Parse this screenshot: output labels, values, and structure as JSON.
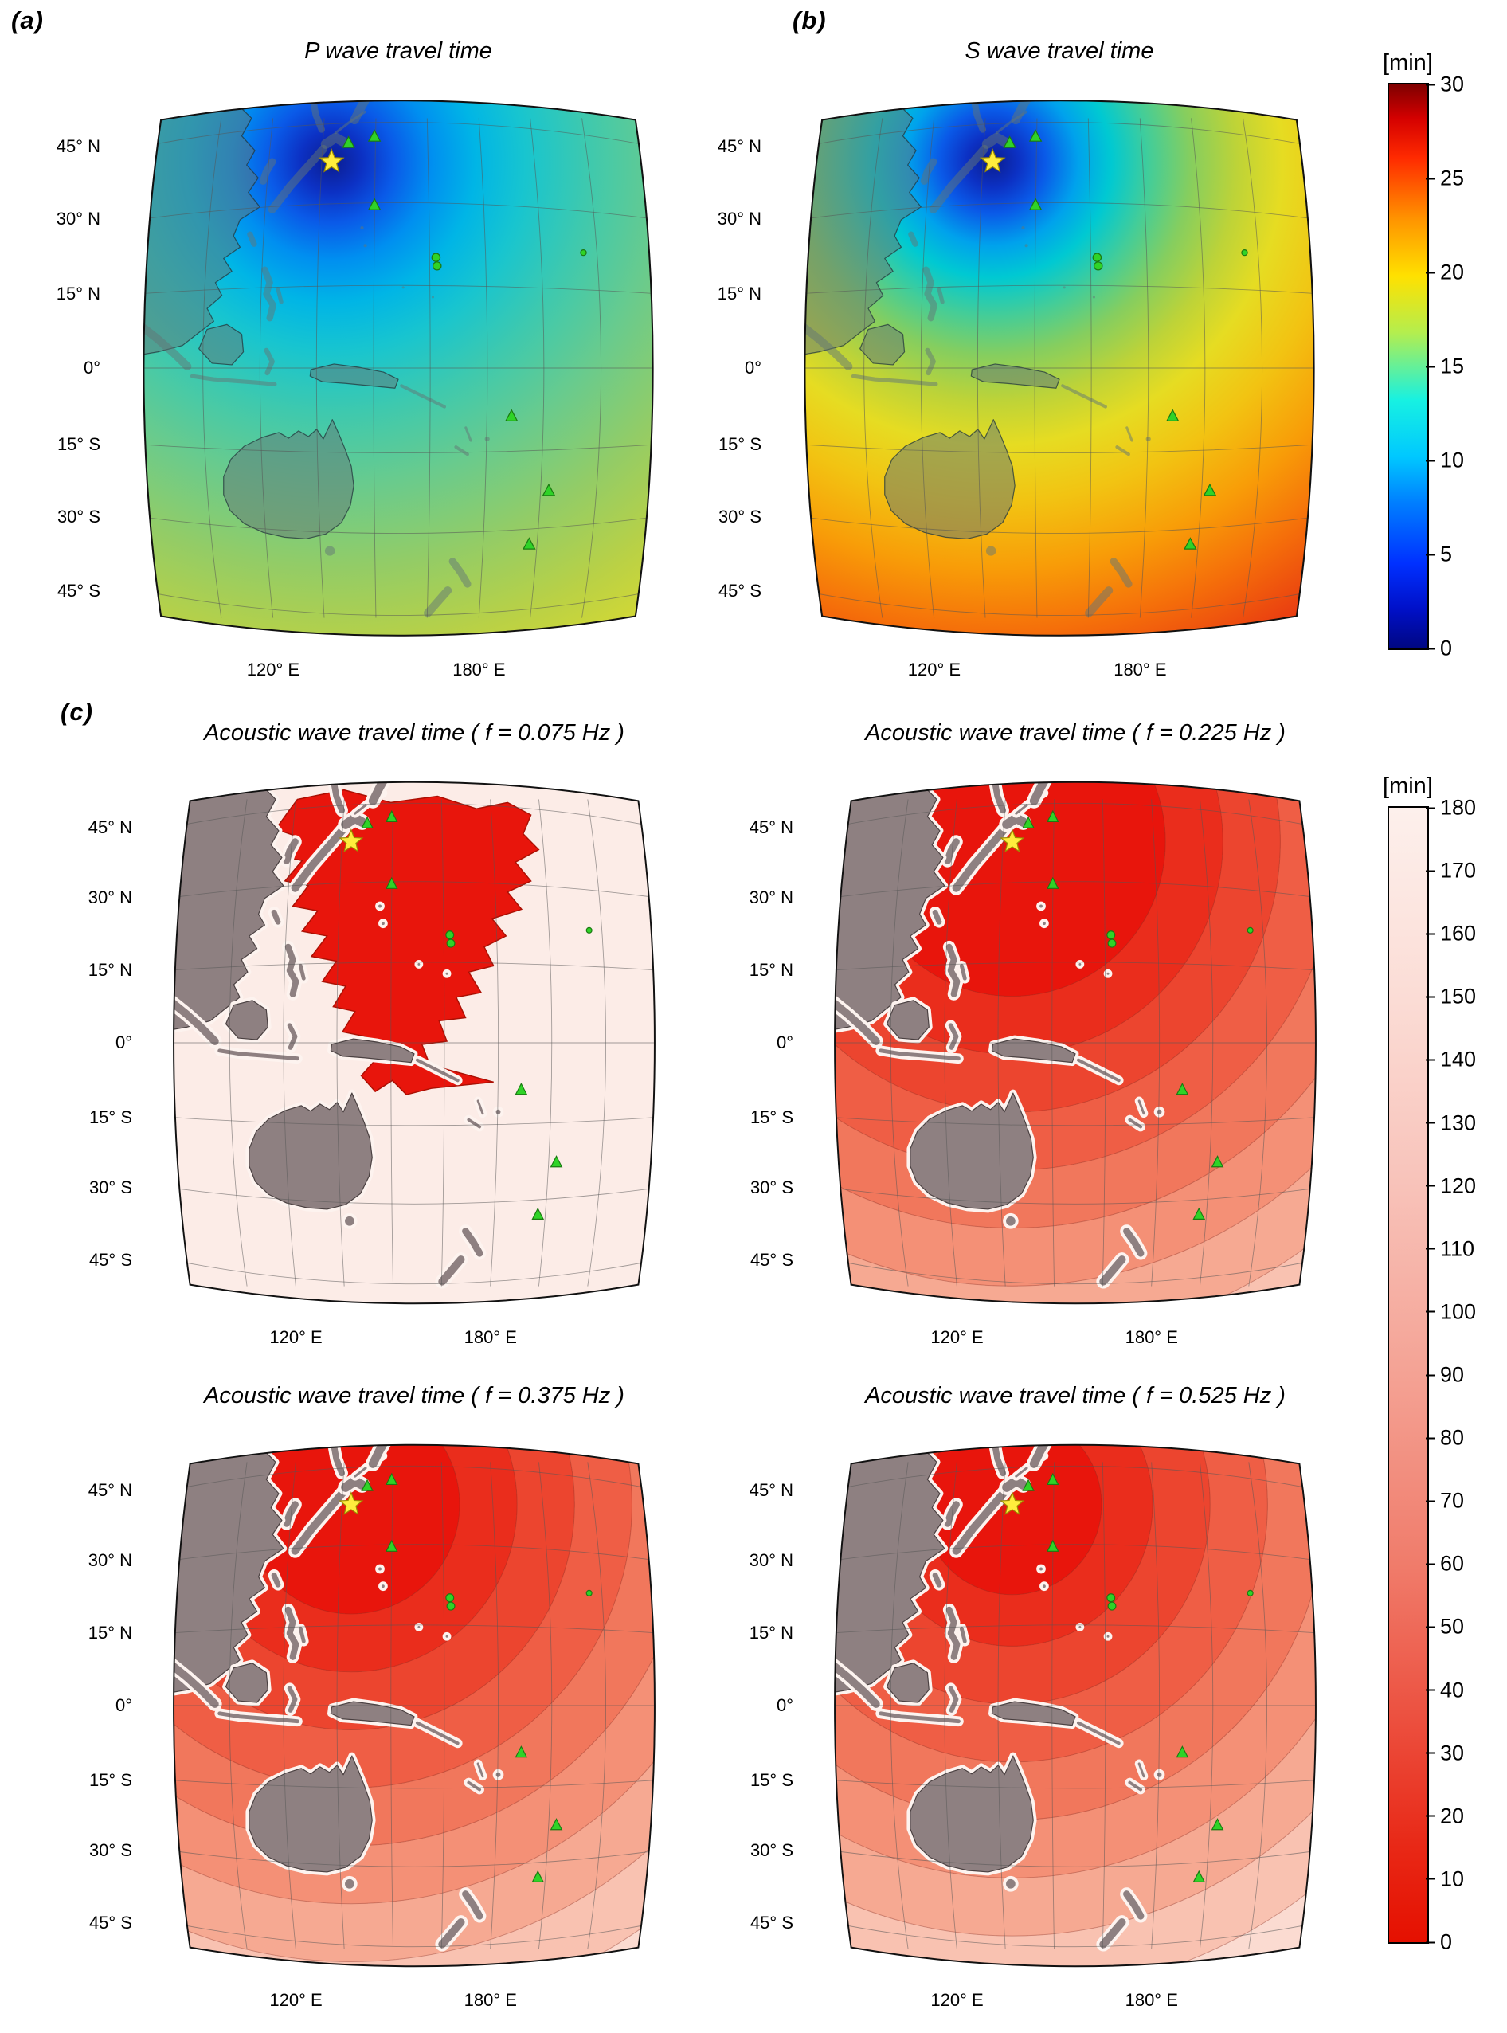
{
  "figure": {
    "panel_labels": {
      "a": "(a)",
      "b": "(b)",
      "c": "(c)"
    },
    "colorbar_top": {
      "unit_label": "[min]",
      "min": 0,
      "max": 30,
      "colormap": "jet",
      "ticks": [
        "30",
        "25",
        "20",
        "15",
        "10",
        "5",
        "0"
      ]
    },
    "colorbar_bottom": {
      "unit_label": "[min]",
      "min": 0,
      "max": 180,
      "colormap": "red-to-white",
      "ticks": [
        "180",
        "170",
        "160",
        "150",
        "140",
        "130",
        "120",
        "110",
        "100",
        "90",
        "80",
        "70",
        "60",
        "50",
        "40",
        "30",
        "20",
        "10",
        "0"
      ]
    }
  },
  "axes": {
    "lat_ticks": [
      "45° N",
      "30° N",
      "15° N",
      "0°",
      "15° S",
      "30° S",
      "45° S"
    ],
    "lon_ticks": [
      "120° E",
      "180° E"
    ]
  },
  "panels": {
    "a": {
      "title": "P wave travel time"
    },
    "b": {
      "title": "S wave travel time"
    },
    "c1": {
      "title": "Acoustic wave travel time ( f = 0.075 Hz )"
    },
    "c2": {
      "title": "Acoustic wave travel time ( f = 0.225 Hz )"
    },
    "c3": {
      "title": "Acoustic wave travel time ( f = 0.375 Hz )"
    },
    "c4": {
      "title": "Acoustic wave travel time ( f = 0.525 Hz )"
    }
  },
  "map_markers": {
    "epicenter": {
      "shape": "star",
      "color": "#ffec3d",
      "edge": "#9c8b00",
      "x": 0.371,
      "y": 0.112,
      "approx_lon_lat": [
        142,
        38
      ]
    },
    "station_color": "#2fd327",
    "station_edge": "#1b7a12",
    "stations": [
      {
        "shape": "triangle",
        "x": 0.404,
        "y": 0.077,
        "approx_lon_lat": [
          144,
          43
        ]
      },
      {
        "shape": "triangle",
        "x": 0.454,
        "y": 0.065,
        "approx_lon_lat": [
          150,
          44
        ]
      },
      {
        "shape": "triangle",
        "x": 0.454,
        "y": 0.194,
        "approx_lon_lat": [
          150,
          31
        ]
      },
      {
        "shape": "circle",
        "x": 0.573,
        "y": 0.292,
        "approx_lon_lat": [
          167,
          21
        ]
      },
      {
        "shape": "circle",
        "x": 0.575,
        "y": 0.308,
        "approx_lon_lat": [
          167,
          19
        ]
      },
      {
        "shape": "circle",
        "x": 0.858,
        "y": 0.283,
        "small": true,
        "approx_lon_lat": [
          206,
          22
        ]
      },
      {
        "shape": "triangle",
        "x": 0.719,
        "y": 0.591,
        "approx_lon_lat": [
          187,
          -9
        ]
      },
      {
        "shape": "triangle",
        "x": 0.791,
        "y": 0.731,
        "approx_lon_lat": [
          197,
          -23
        ]
      },
      {
        "shape": "triangle",
        "x": 0.753,
        "y": 0.832,
        "approx_lon_lat": [
          191,
          -33
        ]
      }
    ]
  },
  "chart_data": [
    {
      "id": "a",
      "type": "heatmap",
      "title": "P wave travel time",
      "units": "min",
      "colorbar_range": [
        0,
        30
      ],
      "colormap": "jet",
      "region": "western/central Pacific, approx 90E-225E, 50S-50N",
      "lat_ticks": [
        "45° N",
        "30° N",
        "15° N",
        "0°",
        "15° S",
        "30° S",
        "45° S"
      ],
      "lon_ticks": [
        "120° E",
        "180° E"
      ],
      "pattern": "travel time increases radially from the epicenter offshore NE Japan (~0 min, dark blue) to ~13-15 min (yellow-green) at the far SE corner",
      "value_range_shown": [
        0,
        15
      ],
      "land_style": "overlay",
      "render": "gradient",
      "gradient_radius": 760,
      "gradient_stops": [
        [
          0,
          "#0b1c8f"
        ],
        [
          0.05,
          "#0c31c4"
        ],
        [
          0.1,
          "#0a5ae8"
        ],
        [
          0.16,
          "#008ff0"
        ],
        [
          0.23,
          "#00b5e6"
        ],
        [
          0.31,
          "#18c5cf"
        ],
        [
          0.41,
          "#3ec9ae"
        ],
        [
          0.53,
          "#69cb8d"
        ],
        [
          0.66,
          "#92cc67"
        ],
        [
          0.8,
          "#bad145"
        ],
        [
          0.92,
          "#d9da30"
        ],
        [
          1,
          "#e6df28"
        ]
      ]
    },
    {
      "id": "b",
      "type": "heatmap",
      "title": "S wave travel time",
      "units": "min",
      "colorbar_range": [
        0,
        30
      ],
      "colormap": "jet",
      "region": "western/central Pacific, approx 90E-225E, 50S-50N",
      "lat_ticks": [
        "45° N",
        "30° N",
        "15° N",
        "0°",
        "15° S",
        "30° S",
        "45° S"
      ],
      "lon_ticks": [
        "120° E",
        "180° E"
      ],
      "pattern": "travel time increases radially from the epicenter offshore NE Japan (~0 min, dark blue) through green/yellow (~15 min mid-map) to ~25-28 min (deep red) at the southern and eastern edges",
      "value_range_shown": [
        0,
        28
      ],
      "land_style": "overlay",
      "render": "gradient",
      "gradient_radius": 800,
      "gradient_stops": [
        [
          0,
          "#0b1c8f"
        ],
        [
          0.04,
          "#0c31c4"
        ],
        [
          0.08,
          "#0a5ae8"
        ],
        [
          0.13,
          "#00a2ec"
        ],
        [
          0.18,
          "#00c9d2"
        ],
        [
          0.24,
          "#45cd97"
        ],
        [
          0.3,
          "#85ce5f"
        ],
        [
          0.37,
          "#bdd338"
        ],
        [
          0.44,
          "#e6dc22"
        ],
        [
          0.53,
          "#f2c312"
        ],
        [
          0.63,
          "#f89d08"
        ],
        [
          0.73,
          "#f56f0a"
        ],
        [
          0.83,
          "#ea4110"
        ],
        [
          0.93,
          "#dc2314"
        ],
        [
          1,
          "#d21a12"
        ]
      ]
    },
    {
      "id": "c1",
      "type": "contour",
      "title": "Acoustic wave travel time ( f = 0.075 Hz )",
      "frequency_hz": 0.075,
      "units": "min",
      "colorbar_range": [
        0,
        180
      ],
      "colormap": "red-to-white",
      "lat_ticks": [
        "45° N",
        "30° N",
        "15° N",
        "0°",
        "15° S",
        "30° S",
        "45° S"
      ],
      "lon_ticks": [
        "120° E",
        "180° E"
      ],
      "pattern": "large irregular solid-red region (short acoustic travel time) over the deep NW Pacific around the epicenter extending SE; the rest of the ocean saturates near 180 min (near-white); land (gray) masked",
      "land_style": "solid",
      "render": "blob",
      "background_color": "#fcece7",
      "blob_color": "#e8150c",
      "blob_edge_color": "#ab1004"
    },
    {
      "id": "c2",
      "type": "contour",
      "title": "Acoustic wave travel time ( f = 0.225 Hz )",
      "frequency_hz": 0.225,
      "units": "min",
      "colorbar_range": [
        0,
        180
      ],
      "colormap": "red-to-white",
      "lat_ticks": [
        "45° N",
        "30° N",
        "15° N",
        "0°",
        "15° S",
        "30° S",
        "45° S"
      ],
      "lon_ticks": [
        "120° E",
        "180° E"
      ],
      "pattern": "banded contours of travel time radiating from the epicenter: deep red core near Japan, bands lightening toward pale pink at the SE corner; land (gray) masked",
      "land_style": "solid",
      "render": "gradient",
      "gradient_radius": 820,
      "band_offsets": [
        0.24,
        0.33,
        0.42,
        0.51,
        0.6,
        0.69,
        0.78,
        0.87,
        0.95
      ],
      "gradient_stops": [
        [
          0,
          "#e8150c"
        ],
        [
          0.24,
          "#e8150c"
        ],
        [
          0.24,
          "#ea2d1c"
        ],
        [
          0.33,
          "#ea2d1c"
        ],
        [
          0.33,
          "#ec452f"
        ],
        [
          0.42,
          "#ec452f"
        ],
        [
          0.42,
          "#ef5e45"
        ],
        [
          0.51,
          "#ef5e45"
        ],
        [
          0.51,
          "#f1775c"
        ],
        [
          0.6,
          "#f1775c"
        ],
        [
          0.6,
          "#f49076"
        ],
        [
          0.69,
          "#f49076"
        ],
        [
          0.69,
          "#f6a992"
        ],
        [
          0.78,
          "#f6a992"
        ],
        [
          0.78,
          "#f9c2b1"
        ],
        [
          0.87,
          "#f9c2b1"
        ],
        [
          0.87,
          "#fbdbd1"
        ],
        [
          0.95,
          "#fbdbd1"
        ],
        [
          0.95,
          "#fdeee8"
        ],
        [
          1,
          "#fdeee8"
        ]
      ]
    },
    {
      "id": "c3",
      "type": "contour",
      "title": "Acoustic wave travel time ( f = 0.375 Hz )",
      "frequency_hz": 0.375,
      "units": "min",
      "colorbar_range": [
        0,
        180
      ],
      "colormap": "red-to-white",
      "lat_ticks": [
        "45° N",
        "30° N",
        "15° N",
        "0°",
        "15° S",
        "30° S",
        "45° S"
      ],
      "lon_ticks": [
        "120° E",
        "180° E"
      ],
      "pattern": "banded contours radiating from the epicenter; tighter red core than at 0.225 Hz, bands lightening toward pale pink in the far SE; land (gray) masked",
      "land_style": "solid",
      "render": "gradient",
      "gradient_radius": 820,
      "band_offsets": [
        0.17,
        0.26,
        0.35,
        0.44,
        0.53,
        0.62,
        0.71,
        0.8,
        0.9
      ],
      "gradient_stops": [
        [
          0,
          "#e8150c"
        ],
        [
          0.17,
          "#e8150c"
        ],
        [
          0.17,
          "#ea2d1c"
        ],
        [
          0.26,
          "#ea2d1c"
        ],
        [
          0.26,
          "#ec452f"
        ],
        [
          0.35,
          "#ec452f"
        ],
        [
          0.35,
          "#ef5e45"
        ],
        [
          0.44,
          "#ef5e45"
        ],
        [
          0.44,
          "#f1775c"
        ],
        [
          0.53,
          "#f1775c"
        ],
        [
          0.53,
          "#f49076"
        ],
        [
          0.62,
          "#f49076"
        ],
        [
          0.62,
          "#f6a992"
        ],
        [
          0.71,
          "#f6a992"
        ],
        [
          0.71,
          "#f9c2b1"
        ],
        [
          0.8,
          "#f9c2b1"
        ],
        [
          0.8,
          "#fbdbd1"
        ],
        [
          0.9,
          "#fbdbd1"
        ],
        [
          0.9,
          "#fdeee8"
        ],
        [
          1,
          "#fdeee8"
        ]
      ]
    },
    {
      "id": "c4",
      "type": "contour",
      "title": "Acoustic wave travel time ( f = 0.525 Hz )",
      "frequency_hz": 0.525,
      "units": "min",
      "colorbar_range": [
        0,
        180
      ],
      "colormap": "red-to-white",
      "lat_ticks": [
        "45° N",
        "30° N",
        "15° N",
        "0°",
        "15° S",
        "30° S",
        "45° S"
      ],
      "lon_ticks": [
        "120° E",
        "180° E"
      ],
      "pattern": "banded contours radiating from the epicenter; smallest red core of the four frequencies, bands lightening toward pale pink in the far SE; land (gray) masked",
      "land_style": "solid",
      "render": "gradient",
      "gradient_radius": 820,
      "band_offsets": [
        0.14,
        0.22,
        0.31,
        0.4,
        0.49,
        0.58,
        0.67,
        0.76,
        0.87
      ],
      "gradient_stops": [
        [
          0,
          "#e8150c"
        ],
        [
          0.14,
          "#e8150c"
        ],
        [
          0.14,
          "#ea2d1c"
        ],
        [
          0.22,
          "#ea2d1c"
        ],
        [
          0.22,
          "#ec452f"
        ],
        [
          0.31,
          "#ec452f"
        ],
        [
          0.31,
          "#ef5e45"
        ],
        [
          0.4,
          "#ef5e45"
        ],
        [
          0.4,
          "#f1775c"
        ],
        [
          0.49,
          "#f1775c"
        ],
        [
          0.49,
          "#f49076"
        ],
        [
          0.58,
          "#f49076"
        ],
        [
          0.58,
          "#f6a992"
        ],
        [
          0.67,
          "#f6a992"
        ],
        [
          0.67,
          "#f9c2b1"
        ],
        [
          0.76,
          "#f9c2b1"
        ],
        [
          0.76,
          "#fbdbd1"
        ],
        [
          0.87,
          "#fbdbd1"
        ],
        [
          0.87,
          "#fdeee8"
        ],
        [
          1,
          "#fdeee8"
        ]
      ]
    }
  ]
}
